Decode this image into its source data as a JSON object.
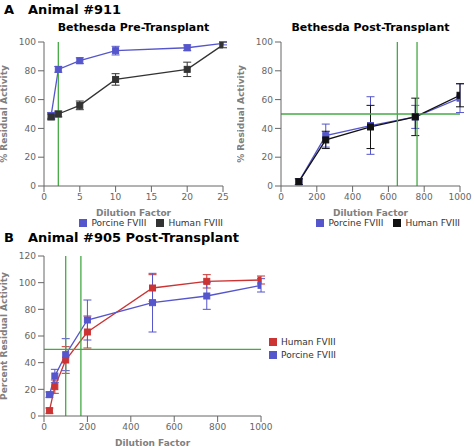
{
  "chart_data": [
    {
      "type": "line",
      "title": "Bethesda Pre-Transplant",
      "annotations": [
        "A",
        "Animal #911"
      ],
      "xlabel": "Dilution Factor",
      "ylabel": "% Residual Activity",
      "xlim": [
        0,
        25
      ],
      "ylim": [
        0,
        100
      ],
      "xticks": [
        0,
        5,
        10,
        15,
        20,
        25
      ],
      "yticks": [
        0,
        20,
        40,
        60,
        80,
        100
      ],
      "grid": false,
      "legend": "lower right",
      "marker": "square",
      "series": [
        {
          "name": "Porcine FVIII",
          "color": "#5555cc",
          "x": [
            1,
            2,
            5,
            10,
            20,
            25
          ],
          "values": [
            49,
            81,
            87,
            94,
            96,
            99
          ],
          "errors": [
            2,
            2,
            2,
            3,
            2,
            1
          ]
        },
        {
          "name": "Human FVIII",
          "color": "#333333",
          "x": [
            1,
            2,
            5,
            10,
            20,
            25
          ],
          "values": [
            48,
            50,
            56,
            74,
            81,
            98
          ],
          "errors": [
            2,
            2,
            3,
            4,
            5,
            2
          ]
        }
      ],
      "reference_lines": {
        "color": "#44aa44",
        "x": [
          2
        ]
      }
    },
    {
      "type": "line",
      "title": "Bethesda Post-Transplant",
      "xlabel": "Dilution Factor",
      "ylabel": "% Residual Activity",
      "xlim": [
        0,
        1000
      ],
      "ylim": [
        0,
        100
      ],
      "xticks": [
        0,
        200,
        400,
        600,
        800,
        1000
      ],
      "yticks": [
        0,
        20,
        40,
        60,
        80,
        100
      ],
      "grid": false,
      "legend": "lower right",
      "marker": "square",
      "series": [
        {
          "name": "Porcine FVIII",
          "color": "#5555cc",
          "x": [
            100,
            250,
            500,
            750,
            1000
          ],
          "values": [
            3,
            35,
            42,
            48,
            61
          ],
          "errors": [
            2,
            8,
            20,
            8,
            10
          ]
        },
        {
          "name": "Human FVIII",
          "color": "#111111",
          "x": [
            100,
            250,
            500,
            750,
            1000
          ],
          "values": [
            3,
            32,
            41,
            48,
            63
          ],
          "errors": [
            2,
            6,
            15,
            13,
            8
          ]
        }
      ],
      "reference_lines": {
        "color": "#44aa44",
        "x": [
          650,
          760
        ],
        "y": [
          50
        ]
      }
    },
    {
      "type": "line",
      "annotations": [
        "B",
        "Animal #905 Post-Transplant"
      ],
      "xlabel": "Dilution Factor",
      "ylabel": "Percent Residual Activity",
      "xlim": [
        0,
        1000
      ],
      "ylim": [
        0,
        120
      ],
      "xticks": [
        0,
        200,
        400,
        600,
        800,
        1000
      ],
      "yticks": [
        0,
        20,
        40,
        60,
        80,
        100,
        120
      ],
      "grid": false,
      "legend": "center right",
      "marker": "square",
      "series": [
        {
          "name": "Human FVIII",
          "color": "#cc3333",
          "x": [
            25,
            50,
            100,
            200,
            500,
            750,
            1000
          ],
          "values": [
            4,
            22,
            42,
            63,
            96,
            101,
            102
          ],
          "errors": [
            2,
            5,
            10,
            12,
            10,
            5,
            3
          ]
        },
        {
          "name": "Porcine FVIII",
          "color": "#5555cc",
          "x": [
            25,
            50,
            100,
            200,
            500,
            750,
            1000
          ],
          "values": [
            16,
            30,
            46,
            72,
            85,
            90,
            98
          ],
          "errors": [
            2,
            5,
            12,
            15,
            22,
            10,
            5
          ]
        }
      ],
      "reference_lines": {
        "color": "#44aa44",
        "x": [
          100,
          170
        ],
        "y": [
          50
        ]
      }
    }
  ]
}
